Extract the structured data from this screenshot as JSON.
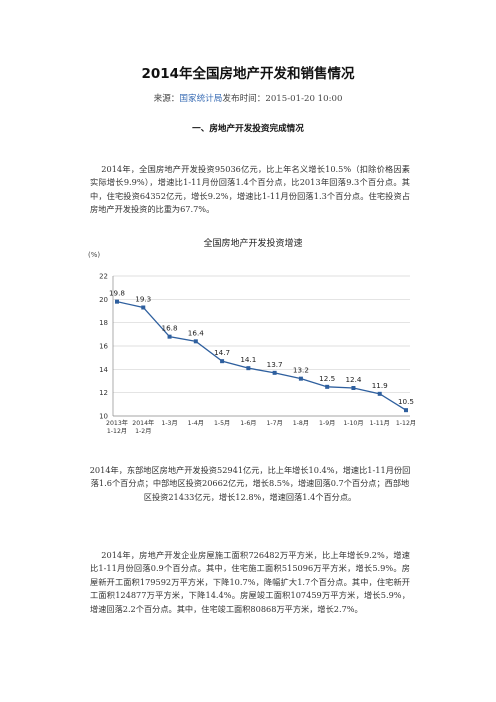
{
  "title": "2014年全国房地产开发和销售情况",
  "source": {
    "label": "来源：",
    "org": "国家统计局",
    "date_label": "发布时间：",
    "date": "2015-01-20  10:00"
  },
  "section1_title": "一、房地产开发投资完成情况",
  "paragraphs": [
    "    2014年，全国房地产开发投资95036亿元，比上年名义增长10.5%（扣除价格因素实际增长9.9%），增速比1-11月份回落1.4个百分点，比2013年回落9.3个百分点。其中，住宅投资64352亿元，增长9.2%，增速比1-11月份回落1.3个百分点。住宅投资占房地产开发投资的比重为67.7%。",
    "2014年，东部地区房地产开发投资52941亿元，比上年增长10.4%，增速比1-11月份回落1.6个百分点；中部地区投资20662亿元，增长8.5%，增速回落0.7个百分点；西部地区投资21433亿元，增长12.8%，增速回落1.4个百分点。",
    "    2014年，房地产开发企业房屋施工面积726482万平方米，比上年增长9.2%，增速比1-11月份回落0.9个百分点。其中，住宅施工面积515096万平方米，增长5.9%。房屋新开工面积179592万平方米，下降10.7%，降幅扩大1.7个百分点。其中，住宅新开工面积124877万平方米，下降14.4%。房屋竣工面积107459万平方米，增长5.9%，增速回落2.2个百分点。其中，住宅竣工面积80868万平方米，增长2.7%。"
  ],
  "colors": {
    "line": "#2e5f9e",
    "marker": "#2e5f9e",
    "link": "#3a6db5"
  },
  "chart_data": {
    "type": "line",
    "title": "全国房地产开发投资增速",
    "ylabel": "(%)",
    "xlabel": "",
    "ylim": [
      10,
      22
    ],
    "yticks": [
      10,
      12,
      14,
      16,
      18,
      20,
      22
    ],
    "grid": true,
    "categories": [
      [
        "2013年",
        "1-12月"
      ],
      [
        "2014年",
        "1-2月"
      ],
      [
        "1-3月"
      ],
      [
        "1-4月"
      ],
      [
        "1-5月"
      ],
      [
        "1-6月"
      ],
      [
        "1-7月"
      ],
      [
        "1-8月"
      ],
      [
        "1-9月"
      ],
      [
        "1-10月"
      ],
      [
        "1-11月"
      ],
      [
        "1-12月"
      ]
    ],
    "values": [
      19.8,
      19.3,
      16.8,
      16.4,
      14.7,
      14.1,
      13.7,
      13.2,
      12.5,
      12.4,
      11.9,
      10.5
    ],
    "labels": [
      "19.8",
      "19.3",
      "16.8",
      "16.4",
      "14.7",
      "14.1",
      "13.7",
      "13.2",
      "12.5",
      "12.4",
      "11.9",
      "10.5"
    ]
  }
}
